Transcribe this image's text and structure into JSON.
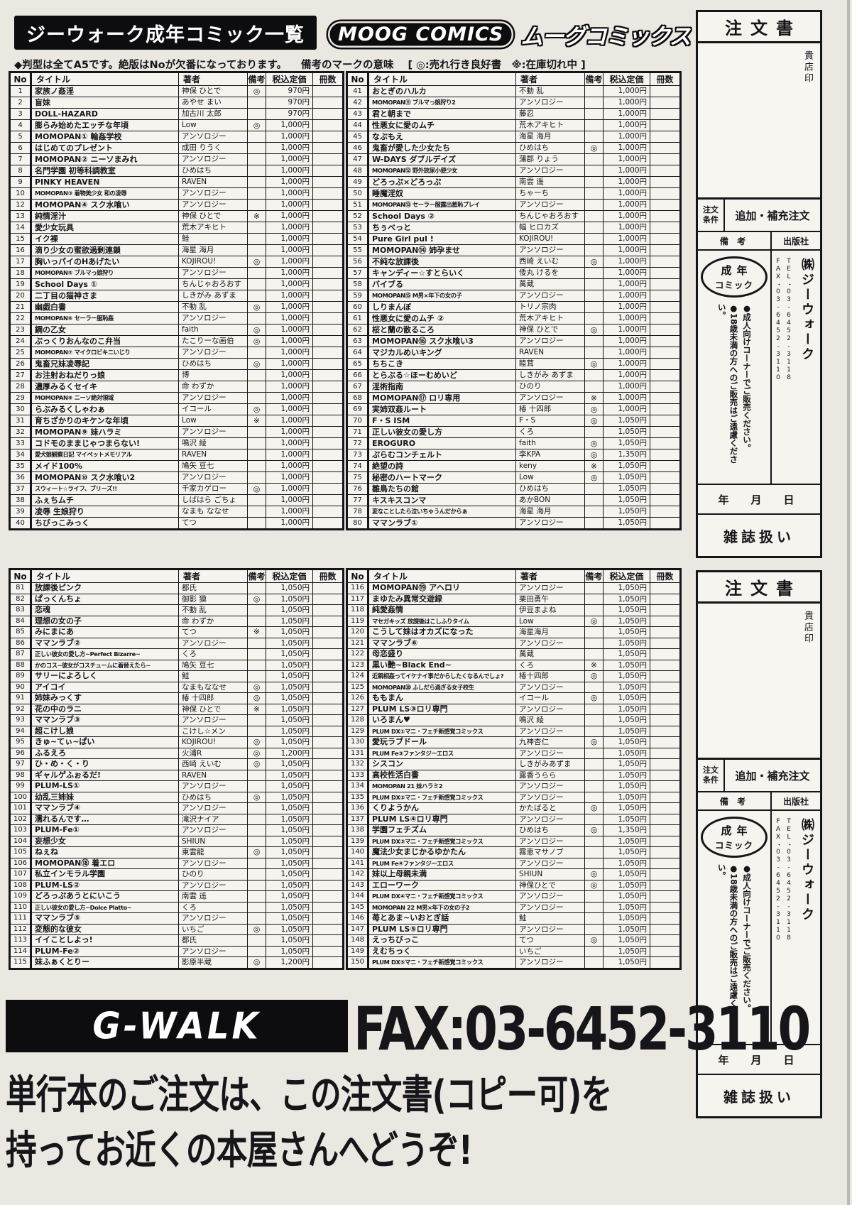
{
  "header": {
    "title": "ジーウォーク成年コミック一覧",
    "logo_moog": "MOOG COMICS",
    "logo_kana": "ムーグコミックス",
    "note": "◆判型は全てA5です。絶版はNoが欠番になっております。",
    "legend_label": "備考のマークの意味",
    "legend": "[ ◎:売れ行き良好書　※:在庫切れ中 ]"
  },
  "columns": {
    "no": "No",
    "title": "タイトル",
    "author": "著者",
    "remark": "備考",
    "price": "税込定価",
    "copies": "冊数"
  },
  "tables": [
    {
      "rows": [
        [
          "1",
          "家族ノ姦淫",
          "神保 ひとで",
          "◎",
          "970円"
        ],
        [
          "2",
          "盲妹",
          "あやせ まい",
          "",
          "970円"
        ],
        [
          "3",
          "DOLL-HAZARD",
          "加古川 太郎",
          "",
          "970円"
        ],
        [
          "4",
          "膨らみ始めたエッチな年頃",
          "Low",
          "◎",
          "1,000円"
        ],
        [
          "5",
          "MOMOPAN① 輪姦学校",
          "アンソロジー",
          "",
          "1,000円"
        ],
        [
          "6",
          "はじめてのプレゼント",
          "成田 りうく",
          "",
          "1,000円"
        ],
        [
          "7",
          "MOMOPAN② ニーソまみれ",
          "アンソロジー",
          "",
          "1,000円"
        ],
        [
          "8",
          "名門学園 初等科調教室",
          "ひめはち",
          "",
          "1,000円"
        ],
        [
          "9",
          "PINKY HEAVEN",
          "RAVEN",
          "",
          "1,000円"
        ],
        [
          "10",
          "MOMOPAN③ 着物美少女 和の凌辱",
          "アンソロジー",
          "",
          "1,000円"
        ],
        [
          "12",
          "MOMOPAN④ スク水喰い",
          "アンソロジー",
          "",
          "1,000円"
        ],
        [
          "13",
          "純情淫汁",
          "神保 ひとで",
          "※",
          "1,000円"
        ],
        [
          "14",
          "愛少女玩具",
          "荒木アキヒト",
          "",
          "1,000円"
        ],
        [
          "15",
          "イク裸",
          "鮭",
          "",
          "1,000円"
        ],
        [
          "16",
          "滴り少女の蜜欲過剰連鎖",
          "海星 海月",
          "",
          "1,000円"
        ],
        [
          "17",
          "胸いっパイのHあげたい",
          "KOJIROU!",
          "◎",
          "1,000円"
        ],
        [
          "18",
          "MOMOPAN⑤ ブルマっ娘狩り",
          "アンソロジー",
          "",
          "1,000円"
        ],
        [
          "19",
          "School Days ①",
          "ちんじゃおろおす",
          "",
          "1,000円"
        ],
        [
          "20",
          "二丁目の猫神さま",
          "しきがみ あずま",
          "",
          "1,000円"
        ],
        [
          "21",
          "幽戯白書",
          "不動 乱",
          "◎",
          "1,000円"
        ],
        [
          "22",
          "MOMOPAN⑥ セーラー服恥姦",
          "アンソロジー",
          "",
          "1,000円"
        ],
        [
          "23",
          "鋼の乙女",
          "faith",
          "◎",
          "1,000円"
        ],
        [
          "24",
          "ぷっくりおんなのこ弁当",
          "たこりーな画伯",
          "◎",
          "1,000円"
        ],
        [
          "25",
          "MOMOPAN⑦ マイクロビキニいじり",
          "アンソロジー",
          "",
          "1,000円"
        ],
        [
          "26",
          "鬼畜兄妹凌辱記",
          "ひめはち",
          "◎",
          "1,000円"
        ],
        [
          "27",
          "お注射おねだりっ娘",
          "博",
          "",
          "1,000円"
        ],
        [
          "28",
          "濃厚みるくセイキ",
          "命 わずか",
          "",
          "1,000円"
        ],
        [
          "29",
          "MOMOPAN⑧ ニーソ絶対領域",
          "アンソロジー",
          "",
          "1,000円"
        ],
        [
          "30",
          "らぶみるくしゃわぁ",
          "イコール",
          "◎",
          "1,000円"
        ],
        [
          "31",
          "育ちざかりのキケンな年頃",
          "Low",
          "※",
          "1,000円"
        ],
        [
          "32",
          "MOMOPAN⑨ 妹ハラミ",
          "アンソロジー",
          "",
          "1,000円"
        ],
        [
          "33",
          "コドモのままじゃつまらない!",
          "鳴沢 綾",
          "",
          "1,000円"
        ],
        [
          "34",
          "愛犬娘観察日記 マイペットメモリアル",
          "RAVEN",
          "",
          "1,000円"
        ],
        [
          "35",
          "メイド100%",
          "鳩矢 豆七",
          "",
          "1,000円"
        ],
        [
          "36",
          "MOMOPAN⑩ スク水喰い2",
          "アンソロジー",
          "",
          "1,000円"
        ],
        [
          "37",
          "スウィート☆ライフ、ブリーズ!!",
          "千家カゲロー",
          "◎",
          "1,000円"
        ],
        [
          "38",
          "ふぇちムチ",
          "しばはら ごちょ",
          "",
          "1,000円"
        ],
        [
          "39",
          "凌辱 生娘狩り",
          "なまも ななせ",
          "",
          "1,000円"
        ],
        [
          "40",
          "ちびっこみっく",
          "てつ",
          "",
          "1,000円"
        ]
      ]
    },
    {
      "rows": [
        [
          "41",
          "おとぎのハルカ",
          "不動 乱",
          "",
          "1,000円"
        ],
        [
          "42",
          "MOMOPAN⑪ ブルマっ娘狩り2",
          "アンソロジー",
          "",
          "1,000円"
        ],
        [
          "43",
          "君と朝まで",
          "藤忍",
          "",
          "1,000円"
        ],
        [
          "44",
          "性悪女に愛のムチ",
          "荒木アキヒト",
          "",
          "1,000円"
        ],
        [
          "45",
          "なぶもえ",
          "海星 海月",
          "",
          "1,000円"
        ],
        [
          "46",
          "鬼畜が愛した少女たち",
          "ひめはち",
          "◎",
          "1,000円"
        ],
        [
          "47",
          "W-DAYS ダブルデイズ",
          "蒲郡 りょう",
          "",
          "1,000円"
        ],
        [
          "48",
          "MOMOPAN⑫ 野外放尿小便少女",
          "アンソロジー",
          "",
          "1,000円"
        ],
        [
          "49",
          "どろっぷ×どろっぷ",
          "南雲 遥",
          "",
          "1,000円"
        ],
        [
          "50",
          "睡魔淫奴",
          "ちゃーち",
          "",
          "1,000円"
        ],
        [
          "51",
          "MOMOPAN⑬ セーラー服露出羞恥プレイ",
          "アンソロジー",
          "",
          "1,000円"
        ],
        [
          "52",
          "School Days ②",
          "ちんじゃおろおす",
          "",
          "1,000円"
        ],
        [
          "53",
          "ちぅべっと",
          "幅 ヒロカズ",
          "",
          "1,000円"
        ],
        [
          "54",
          "Pure Girl pul !",
          "KOJIROU!",
          "",
          "1,000円"
        ],
        [
          "55",
          "MOMOPAN⑭ 姉孕ませ",
          "アンソロジー",
          "",
          "1,000円"
        ],
        [
          "56",
          "不純な放課後",
          "西崎 えいむ",
          "◎",
          "1,000円"
        ],
        [
          "57",
          "キャンディー☆すとらいく",
          "倭丸 けるを",
          "",
          "1,000円"
        ],
        [
          "58",
          "バイブる",
          "萬蔵",
          "",
          "1,000円"
        ],
        [
          "59",
          "MOMOPAN⑮ M男×年下の女の子",
          "アンソロジー",
          "",
          "1,000円"
        ],
        [
          "60",
          "しりまんぼ",
          "トリノ宗肉",
          "",
          "1,000円"
        ],
        [
          "61",
          "性悪女に愛のムチ ②",
          "荒木アキヒト",
          "",
          "1,000円"
        ],
        [
          "62",
          "桜と蘭の散るころ",
          "神保 ひとで",
          "◎",
          "1,000円"
        ],
        [
          "63",
          "MOMOPAN⑯ スク水喰い3",
          "アンソロジー",
          "",
          "1,000円"
        ],
        [
          "64",
          "マジカルめいキング",
          "RAVEN",
          "",
          "1,000円"
        ],
        [
          "65",
          "ちちこき",
          "睦茸",
          "◎",
          "1,000円"
        ],
        [
          "66",
          "とらぶる☆ほーむめいど",
          "しきがみ あずま",
          "",
          "1,000円"
        ],
        [
          "67",
          "淫術指南",
          "ひのり",
          "",
          "1,000円"
        ],
        [
          "68",
          "MOMOPAN⑰ ロリ専用",
          "アンソロジー",
          "※",
          "1,000円"
        ],
        [
          "69",
          "実姉双姦ルート",
          "椿 十四郎",
          "◎",
          "1,000円"
        ],
        [
          "70",
          "F・S ISM",
          "F・S",
          "◎",
          "1,050円"
        ],
        [
          "71",
          "正しい彼女の愛し方",
          "くろ",
          "",
          "1,050円"
        ],
        [
          "72",
          "EROGURO",
          "faith",
          "◎",
          "1,050円"
        ],
        [
          "73",
          "ぷらむコンチェルト",
          "李KPA",
          "◎",
          "1,350円"
        ],
        [
          "74",
          "絶望の詩",
          "keny",
          "※",
          "1,050円"
        ],
        [
          "75",
          "秘密のハートマーク",
          "Low",
          "◎",
          "1,050円"
        ],
        [
          "76",
          "雛鳥たちの館",
          "ひめはち",
          "",
          "1,050円"
        ],
        [
          "77",
          "キスキスコンマ",
          "あかBON",
          "",
          "1,050円"
        ],
        [
          "78",
          "変なことしたら泣いちゃうんだからぁ",
          "海星 海月",
          "",
          "1,050円"
        ],
        [
          "80",
          "ママンラブ①",
          "アンソロジー",
          "",
          "1,050円"
        ]
      ]
    },
    {
      "rows": [
        [
          "81",
          "放課後ピンク",
          "都氏",
          "",
          "1,050円"
        ],
        [
          "82",
          "ぱっくんちょ",
          "御影 獏",
          "◎",
          "1,050円"
        ],
        [
          "83",
          "恋魂",
          "不動 乱",
          "",
          "1,050円"
        ],
        [
          "84",
          "理想の女の子",
          "命 わずか",
          "",
          "1,050円"
        ],
        [
          "85",
          "みにまにあ",
          "てつ",
          "※",
          "1,050円"
        ],
        [
          "86",
          "ママンラブ②",
          "アンソロジー",
          "",
          "1,050円"
        ],
        [
          "87",
          "正しい彼女の愛し方~Perfect Bizarre~",
          "くろ",
          "",
          "1,050円"
        ],
        [
          "88",
          "かのコス~彼女がコスチュームに着替えたら~",
          "鳩矢 豆七",
          "",
          "1,050円"
        ],
        [
          "89",
          "サリーによろしく",
          "鮭",
          "",
          "1,050円"
        ],
        [
          "90",
          "アイコイ",
          "なまもななせ",
          "◎",
          "1,050円"
        ],
        [
          "91",
          "姉妹みっくす",
          "椿 十四郎",
          "◎",
          "1,050円"
        ],
        [
          "92",
          "花の中のラニ",
          "神保 ひとで",
          "※",
          "1,050円"
        ],
        [
          "93",
          "ママンラブ③",
          "アンソロジー",
          "",
          "1,050円"
        ],
        [
          "94",
          "超こけし娘",
          "こけし☆メン",
          "",
          "1,050円"
        ],
        [
          "95",
          "きゅ~てぃ~ぱい",
          "KOJIROU!",
          "◎",
          "1,050円"
        ],
        [
          "96",
          "ふるえろ",
          "火浦R",
          "◎",
          "1,200円"
        ],
        [
          "97",
          "ひ・め・く・り",
          "西崎 えいむ",
          "◎",
          "1,050円"
        ],
        [
          "98",
          "ギャルゲふぉるだ!",
          "RAVEN",
          "",
          "1,050円"
        ],
        [
          "99",
          "PLUM-LS①",
          "アンソロジー",
          "",
          "1,050円"
        ],
        [
          "100",
          "幼乱三姉妹",
          "ひめはち",
          "◎",
          "1,050円"
        ],
        [
          "101",
          "ママンラブ④",
          "アンソロジー",
          "",
          "1,050円"
        ],
        [
          "102",
          "濡れるんです…",
          "滝沢ナイア",
          "",
          "1,050円"
        ],
        [
          "103",
          "PLUM-Fe①",
          "アンソロジー",
          "",
          "1,050円"
        ],
        [
          "104",
          "妄想少女",
          "SHIUN",
          "",
          "1,050円"
        ],
        [
          "105",
          "ねぇね",
          "東雲龍",
          "◎",
          "1,050円"
        ],
        [
          "106",
          "MOMOPAN⑱ 着エロ",
          "アンソロジー",
          "",
          "1,050円"
        ],
        [
          "107",
          "私立インモラル学園",
          "ひのり",
          "",
          "1,050円"
        ],
        [
          "108",
          "PLUM-LS②",
          "アンソロジー",
          "",
          "1,050円"
        ],
        [
          "109",
          "どろっぷあうとにいこう",
          "南雲 遥",
          "",
          "1,050円"
        ],
        [
          "110",
          "正しい彼女の愛し方~Dolce Platto~",
          "くろ",
          "",
          "1,050円"
        ],
        [
          "111",
          "ママンラブ⑤",
          "アンソロジー",
          "",
          "1,050円"
        ],
        [
          "112",
          "変態的な彼女",
          "いちご",
          "◎",
          "1,050円"
        ],
        [
          "113",
          "イイことしよっ!",
          "都氏",
          "",
          "1,050円"
        ],
        [
          "114",
          "PLUM-Fe②",
          "アンソロジー",
          "",
          "1,050円"
        ],
        [
          "115",
          "妹ふぁくとりー",
          "影原半蔵",
          "◎",
          "1,200円"
        ]
      ]
    },
    {
      "rows": [
        [
          "116",
          "MOMOPAN⑲ アヘロリ",
          "アンソロジー",
          "",
          "1,050円"
        ],
        [
          "117",
          "まゆたみ異常交遊録",
          "栗田勇午",
          "",
          "1,050円"
        ],
        [
          "118",
          "純愛姦情",
          "伊豆まよね",
          "",
          "1,050円"
        ],
        [
          "119",
          "マセガキッズ 放課後はこしふりタイム",
          "Low",
          "◎",
          "1,050円"
        ],
        [
          "120",
          "こうして妹はオカズになった",
          "海星海月",
          "",
          "1,050円"
        ],
        [
          "121",
          "ママンラブ⑥",
          "アンソロジー",
          "",
          "1,050円"
        ],
        [
          "122",
          "母恋盛り",
          "萬蔵",
          "",
          "1,050円"
        ],
        [
          "123",
          "黒い艶~Black End~",
          "くろ",
          "※",
          "1,050円"
        ],
        [
          "124",
          "近親相姦ってイケナイ事だからしたくなるんでしょ?",
          "椿十四郎",
          "◎",
          "1,050円"
        ],
        [
          "125",
          "MOMOPAN⑳ ふしだら過ぎる女子校生",
          "アンソロジー",
          "",
          "1,050円"
        ],
        [
          "126",
          "ももまん",
          "イコール",
          "◎",
          "1,050円"
        ],
        [
          "127",
          "PLUM LS③ロリ専門",
          "アンソロジー",
          "",
          "1,050円"
        ],
        [
          "128",
          "いろまん♥",
          "鳴沢 綾",
          "",
          "1,050円"
        ],
        [
          "129",
          "PLUM DX①マニ・フェチ新感覚コミックス",
          "アンソロジー",
          "",
          "1,050円"
        ],
        [
          "130",
          "愛玩ラブドール",
          "九神杏仁",
          "◎",
          "1,050円"
        ],
        [
          "131",
          "PLUM Fe③ファンタジーエロス",
          "アンソロジー",
          "",
          "1,050円"
        ],
        [
          "132",
          "シスコン",
          "しきがみあずま",
          "",
          "1,050円"
        ],
        [
          "133",
          "高校性活白書",
          "露香うらら",
          "",
          "1,050円"
        ],
        [
          "134",
          "MOMOPAN 21 妹ハラミ2",
          "アンソロジー",
          "",
          "1,050円"
        ],
        [
          "135",
          "PLUM DX②マニ・フェチ新感覚コミックス",
          "アンソロジー",
          "",
          "1,050円"
        ],
        [
          "136",
          "くりようかん",
          "かたばると",
          "◎",
          "1,050円"
        ],
        [
          "137",
          "PLUM LS④ロリ専門",
          "アンソロジー",
          "",
          "1,050円"
        ],
        [
          "138",
          "学園フェチズム",
          "ひめはち",
          "◎",
          "1,350円"
        ],
        [
          "139",
          "PLUM DX③マニ・フェチ新感覚コミックス",
          "アンソロジー",
          "",
          "1,050円"
        ],
        [
          "140",
          "魔法少女まじかるゆかたん",
          "霧恵マサノブ",
          "",
          "1,050円"
        ],
        [
          "141",
          "PLUM Fe④ファンタジーエロス",
          "アンソロジー",
          "",
          "1,050円"
        ],
        [
          "142",
          "妹以上母親未満",
          "SHIUN",
          "◎",
          "1,050円"
        ],
        [
          "143",
          "エローワーク",
          "神保ひとで",
          "◎",
          "1,050円"
        ],
        [
          "144",
          "PLUM DX④マニ・フェチ新感覚コミックス",
          "アンソロジー",
          "",
          "1,050円"
        ],
        [
          "145",
          "MOMOPAN 22 M男×年下の女の子2",
          "アンソロジー",
          "",
          "1,050円"
        ],
        [
          "146",
          "苺とあま~いおとぎ話",
          "鮭",
          "",
          "1,050円"
        ],
        [
          "147",
          "PLUM LS⑤ロリ専門",
          "アンソロジー",
          "",
          "1,050円"
        ],
        [
          "148",
          "えっちびっこ",
          "てつ",
          "◎",
          "1,050円"
        ],
        [
          "149",
          "えむちっく",
          "いちご",
          "",
          "1,050円"
        ],
        [
          "150",
          "PLUM DX⑤マニ・フェチ新感覚コミックス",
          "アンソロジー",
          "",
          "1,050円"
        ]
      ]
    }
  ],
  "order_form": {
    "title": "注文書",
    "stamp": "貴店印",
    "cond_label": "注文 条件",
    "cond_value": "追加・補充注文",
    "remark_col": "備 考",
    "publisher_col": "出版社",
    "badge_line1": "成年",
    "badge_line2": "コミック",
    "notice1": "●成人向けコーナーでご販売ください。",
    "notice2": "●18歳未満の方へのご販売はご遠慮ください。",
    "publisher": "㈱ジーウォーク",
    "tel": "TEL・03-6452-3118",
    "fax": "FAX・03-6452-3110",
    "date": "年　月　日",
    "magazine": "雑誌扱い"
  },
  "footer": {
    "logo": "G-WALK",
    "fax": "FAX:03-6452-3110",
    "line1": "単行本のご注文は、この注文書(コピー可)を",
    "line2": "持ってお近くの本屋さんへどうぞ!"
  }
}
